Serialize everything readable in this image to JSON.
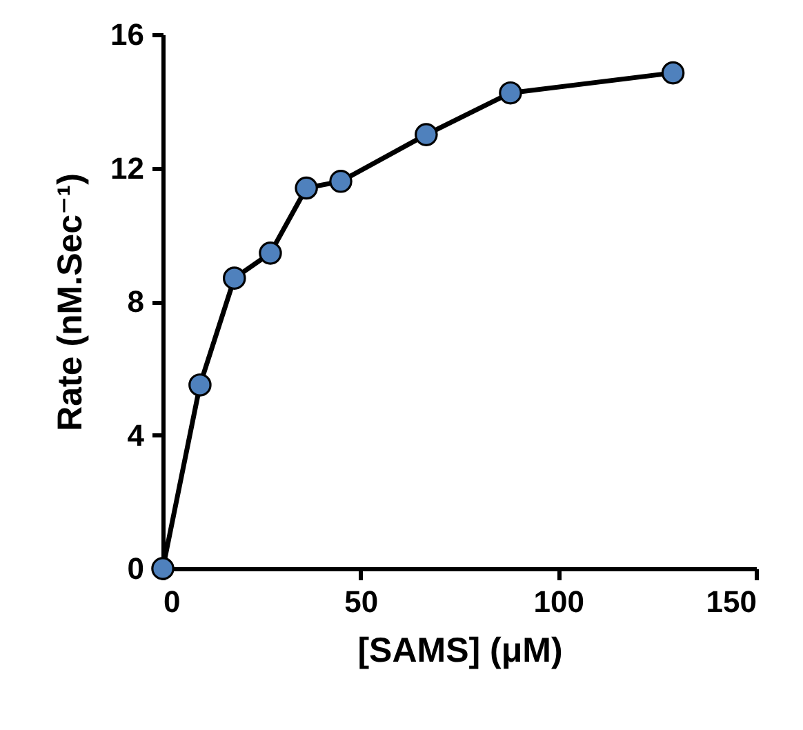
{
  "chart_data": {
    "type": "line",
    "xlabel": "[SAMS] (μM)",
    "ylabel": "Rate (nM.Sec⁻¹)",
    "xlim": [
      0,
      150
    ],
    "xticks": [
      0,
      50,
      100,
      150
    ],
    "ylim": [
      0,
      16
    ],
    "yticks": [
      0,
      4,
      8,
      12,
      16
    ],
    "grid": false,
    "series": [
      {
        "color": "#000000",
        "marker": "none",
        "x": [
          0,
          9.4,
          18.1,
          27.2,
          36.3,
          45,
          66.6,
          87.9,
          129
        ],
        "values": [
          0,
          5.5,
          8.7,
          9.45,
          11.4,
          11.6,
          13,
          14.25,
          14.85
        ]
      },
      {
        "type": "scatter",
        "color": "#4f81bd",
        "marker": "circle",
        "x": [
          0,
          9.4,
          18.1,
          27.2,
          36.3,
          45,
          66.6,
          87.9,
          129
        ],
        "values": [
          0,
          5.5,
          8.7,
          9.45,
          11.4,
          11.6,
          13,
          14.25,
          14.85
        ]
      }
    ]
  }
}
